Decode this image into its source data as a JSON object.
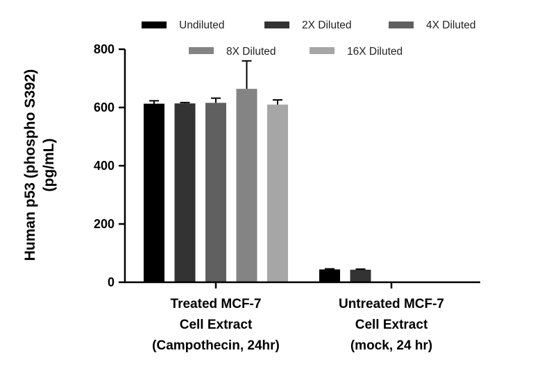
{
  "chart_data": {
    "type": "bar",
    "ylabel_lines": [
      "Human p53 (phospho S392)",
      "(pg/mL)"
    ],
    "ylim": [
      0,
      800
    ],
    "yticks": [
      0,
      200,
      400,
      600,
      800
    ],
    "categories": [
      {
        "lines": [
          "Treated MCF-7",
          "Cell Extract",
          "(Campothecin, 24hr)"
        ]
      },
      {
        "lines": [
          "Untreated MCF-7",
          "Cell Extract",
          "(mock, 24 hr)"
        ]
      }
    ],
    "series": [
      {
        "name": "Undiluted",
        "color": "#000000",
        "values": [
          613,
          44
        ],
        "errors": [
          10,
          2
        ]
      },
      {
        "name": "2X Diluted",
        "color": "#333333",
        "values": [
          614,
          43
        ],
        "errors": [
          3,
          2
        ]
      },
      {
        "name": "4X Diluted",
        "color": "#606060",
        "values": [
          616,
          0
        ],
        "errors": [
          16,
          0
        ]
      },
      {
        "name": "8X Diluted",
        "color": "#848484",
        "values": [
          664,
          0
        ],
        "errors": [
          96,
          0
        ]
      },
      {
        "name": "16X Diluted",
        "color": "#a6a6a6",
        "values": [
          610,
          0
        ],
        "errors": [
          16,
          0
        ]
      }
    ]
  }
}
